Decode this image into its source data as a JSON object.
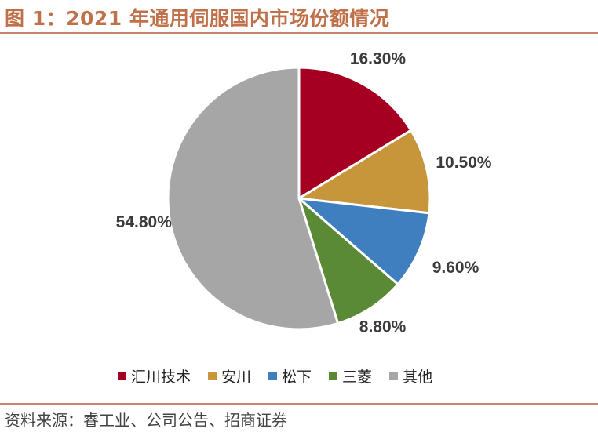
{
  "title": "图 1：2021 年通用伺服国内市场份额情况",
  "source": "资料来源：睿工业、公司公告、招商证券",
  "chart_data": {
    "type": "pie",
    "categories": [
      "汇川技术",
      "安川",
      "松下",
      "三菱",
      "其他"
    ],
    "values": [
      16.3,
      10.5,
      9.6,
      8.8,
      54.8
    ],
    "data_labels": [
      "16.30%",
      "10.50%",
      "9.60%",
      "8.80%",
      "54.80%"
    ],
    "colors": [
      "#a50021",
      "#c8963a",
      "#3f7fbf",
      "#5a8a35",
      "#a6a6a6"
    ],
    "legend_placement": "bottom"
  }
}
